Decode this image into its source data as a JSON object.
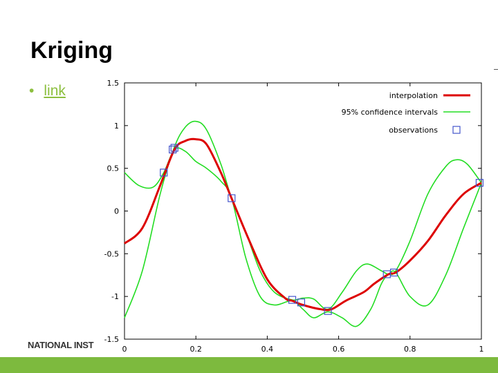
{
  "slide": {
    "title": "Kriging",
    "bullet_link": "link",
    "footer": "NATIONAL INST"
  },
  "colors": {
    "accent_green": "#7dba3e",
    "link_green": "#8cbf3f",
    "interpolation": "#dd0000",
    "confidence": "#22dd22",
    "observation": "#4455cc"
  },
  "chart_data": {
    "type": "line",
    "xlim": [
      0,
      1
    ],
    "ylim": [
      -1.5,
      1.5
    ],
    "x_ticks": [
      "0",
      "0.2",
      "0.4",
      "0.6",
      "0.8",
      "1"
    ],
    "y_ticks": [
      "1.5",
      "1",
      "0.5",
      "0",
      "-0.5",
      "-1",
      "-1.5"
    ],
    "legend_position": "top-right",
    "legend": [
      "interpolation",
      "95% confidence intervals",
      "observations"
    ],
    "series": [
      {
        "name": "interpolation",
        "x": [
          0,
          0.05,
          0.1,
          0.14,
          0.17,
          0.2,
          0.23,
          0.27,
          0.3,
          0.35,
          0.4,
          0.45,
          0.47,
          0.5,
          0.55,
          0.58,
          0.62,
          0.67,
          0.7,
          0.74,
          0.76,
          0.8,
          0.85,
          0.9,
          0.95,
          1.0
        ],
        "y": [
          -0.38,
          -0.2,
          0.3,
          0.72,
          0.82,
          0.84,
          0.78,
          0.45,
          0.15,
          -0.35,
          -0.8,
          -1.02,
          -1.05,
          -1.1,
          -1.15,
          -1.15,
          -1.05,
          -0.95,
          -0.85,
          -0.74,
          -0.72,
          -0.58,
          -0.35,
          -0.05,
          0.2,
          0.33
        ]
      },
      {
        "name": "95% confidence intervals (upper)",
        "x": [
          0,
          0.05,
          0.1,
          0.14,
          0.17,
          0.2,
          0.23,
          0.27,
          0.3,
          0.34,
          0.38,
          0.42,
          0.47,
          0.5,
          0.53,
          0.57,
          0.61,
          0.65,
          0.68,
          0.72,
          0.74,
          0.76,
          0.8,
          0.85,
          0.9,
          0.93,
          0.96,
          1.0
        ],
        "y": [
          -1.25,
          -0.7,
          0.2,
          0.75,
          0.98,
          1.05,
          0.95,
          0.55,
          0.15,
          -0.25,
          -0.7,
          -0.95,
          -1.04,
          -1.02,
          -1.03,
          -1.15,
          -0.95,
          -0.7,
          -0.62,
          -0.7,
          -0.74,
          -0.7,
          -0.35,
          0.2,
          0.52,
          0.6,
          0.55,
          0.33
        ]
      },
      {
        "name": "95% confidence intervals (lower)",
        "x": [
          0,
          0.04,
          0.08,
          0.11,
          0.14,
          0.17,
          0.2,
          0.23,
          0.27,
          0.3,
          0.34,
          0.38,
          0.42,
          0.47,
          0.5,
          0.53,
          0.57,
          0.61,
          0.65,
          0.69,
          0.72,
          0.74,
          0.76,
          0.8,
          0.85,
          0.9,
          0.95,
          1.0
        ],
        "y": [
          0.45,
          0.3,
          0.28,
          0.45,
          0.72,
          0.7,
          0.58,
          0.5,
          0.35,
          0.15,
          -0.55,
          -1.0,
          -1.1,
          -1.05,
          -1.15,
          -1.25,
          -1.18,
          -1.25,
          -1.35,
          -1.15,
          -0.85,
          -0.74,
          -0.72,
          -1.0,
          -1.1,
          -0.75,
          -0.2,
          0.33
        ]
      }
    ],
    "observations": {
      "name": "observations",
      "x": [
        0.11,
        0.135,
        0.14,
        0.3,
        0.47,
        0.495,
        0.57,
        0.735,
        0.755,
        0.995
      ],
      "y": [
        0.45,
        0.72,
        0.74,
        0.15,
        -1.04,
        -1.07,
        -1.17,
        -0.74,
        -0.72,
        0.33
      ]
    }
  }
}
